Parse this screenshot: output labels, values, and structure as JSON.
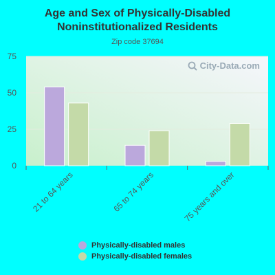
{
  "title_line1": "Age and Sex of Physically-Disabled",
  "title_line2": "Noninstitutionalized Residents",
  "subtitle": "Zip code 37694",
  "watermark": "City-Data.com",
  "colors": {
    "background": "#00ffff",
    "males": "#bba8dc",
    "females": "#c4daa8"
  },
  "chart_data": {
    "type": "bar",
    "categories": [
      "21 to 64 years",
      "65 to 74 years",
      "75 years and over"
    ],
    "series": [
      {
        "name": "Physically-disabled males",
        "values": [
          54,
          14,
          3
        ]
      },
      {
        "name": "Physically-disabled females",
        "values": [
          43,
          24,
          29
        ]
      }
    ],
    "ylim": [
      0,
      75
    ],
    "yticks": [
      0,
      25,
      50,
      75
    ],
    "grid": true,
    "legend_position": "bottom"
  }
}
